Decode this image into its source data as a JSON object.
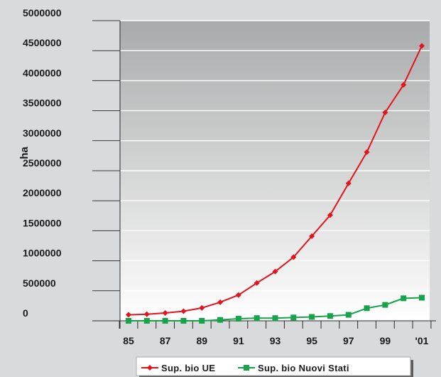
{
  "chart_data": {
    "type": "line",
    "title": "",
    "ylabel": "ha",
    "xlabel": "",
    "ylim": [
      0,
      5000000
    ],
    "y_ticks": [
      "0",
      "500000",
      "1000000",
      "1500000",
      "2000000",
      "2500000",
      "3000000",
      "3500000",
      "4000000",
      "4500000",
      "5000000"
    ],
    "x_ticks": [
      "85",
      "87",
      "89",
      "91",
      "93",
      "95",
      "97",
      "99",
      "'01"
    ],
    "x": [
      1985,
      1986,
      1987,
      1988,
      1989,
      1990,
      1991,
      1992,
      1993,
      1994,
      1995,
      1996,
      1997,
      1998,
      1999,
      2000,
      2001
    ],
    "series": [
      {
        "name": "Sup. bio UE",
        "color": "#e3141b",
        "marker": "diamond",
        "values": [
          100000,
          110000,
          130000,
          160000,
          215000,
          310000,
          430000,
          630000,
          820000,
          1060000,
          1410000,
          1760000,
          2290000,
          2810000,
          3470000,
          3930000,
          4580000
        ]
      },
      {
        "name": "Sup. bio Nuovi Stati",
        "color": "#16a34a",
        "marker": "square",
        "values": [
          0,
          0,
          0,
          0,
          0,
          15000,
          35000,
          45000,
          45000,
          55000,
          65000,
          80000,
          100000,
          210000,
          265000,
          375000,
          385000
        ]
      }
    ],
    "grid": true,
    "legend": "bottom"
  }
}
